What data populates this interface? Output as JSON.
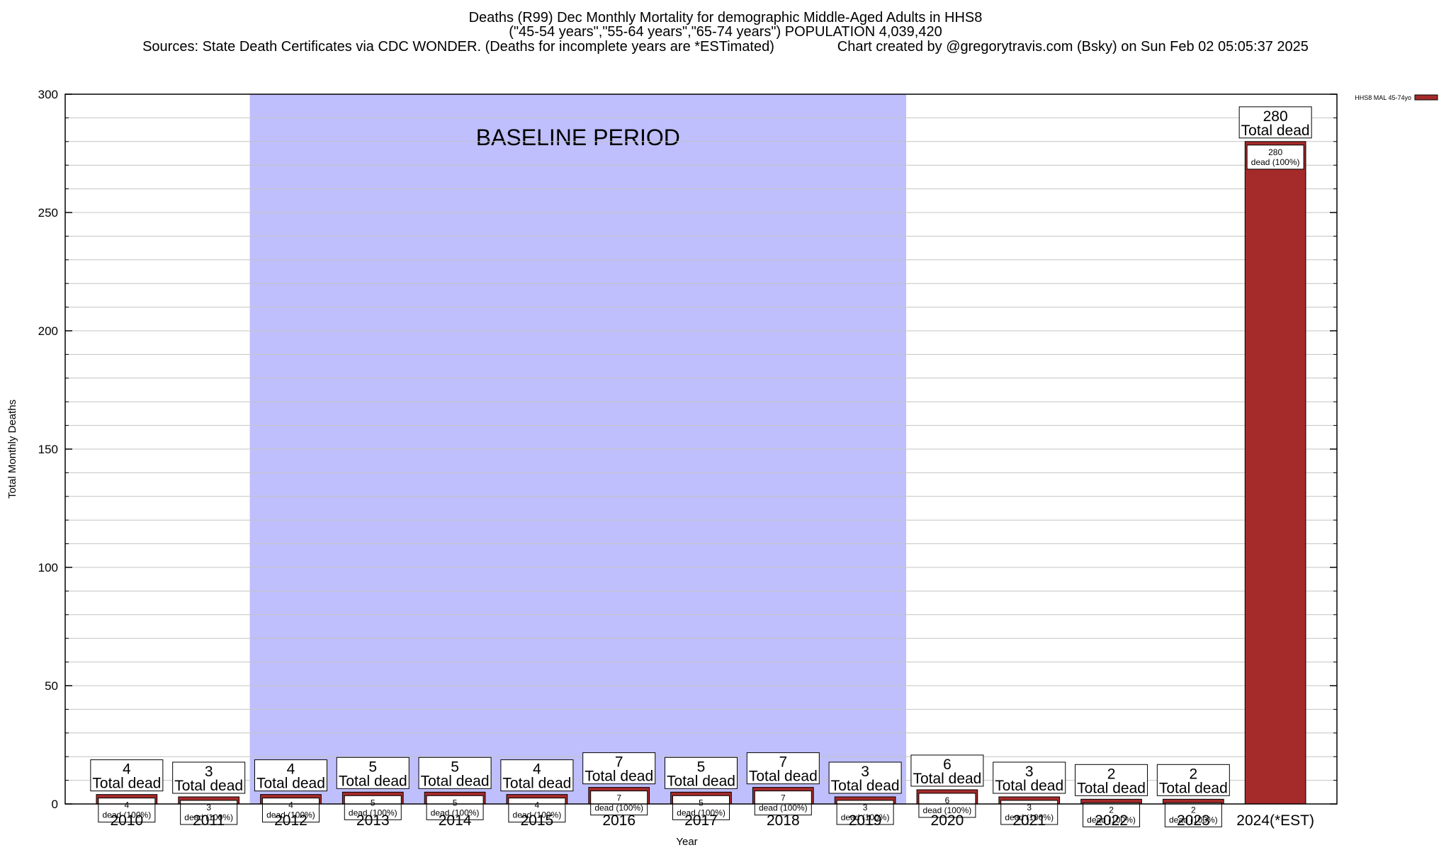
{
  "chart_data": {
    "type": "bar",
    "title": "Deaths (R99) Dec Monthly Mortality for demographic Middle-Aged Adults in HHS8",
    "subtitle": "(\"45-54 years\",\"55-64 years\",\"65-74 years\") POPULATION 4,039,420",
    "sources": "Sources: State Death Certificates via CDC WONDER. (Deaths for incomplete years are *ESTimated)",
    "credit": "Chart created by @gregorytravis.com (Bsky) on Sun Feb 02 05:05:37 2025",
    "xlabel": "Year",
    "ylabel": "Total Monthly Deaths",
    "ylim": [
      0,
      300
    ],
    "yticks": [
      0,
      50,
      100,
      150,
      200,
      250,
      300
    ],
    "grid": true,
    "legend_position": "top-right",
    "categories": [
      "2010",
      "2011",
      "2012",
      "2013",
      "2014",
      "2015",
      "2016",
      "2017",
      "2018",
      "2019",
      "2020",
      "2021",
      "2022",
      "2023",
      "2024(*EST)"
    ],
    "series": [
      {
        "name": "HHS8 MAL 45-74yo",
        "color": "#a52a2a",
        "values": [
          4,
          3,
          4,
          5,
          5,
          4,
          7,
          5,
          7,
          3,
          6,
          3,
          2,
          2,
          280
        ]
      }
    ],
    "top_label_text": "Total dead",
    "inner_label_text": "dead (100%)",
    "baseline_region": {
      "label": "BASELINE PERIOD",
      "from": "2012",
      "to": "2019",
      "color": "#bfbffd"
    }
  }
}
